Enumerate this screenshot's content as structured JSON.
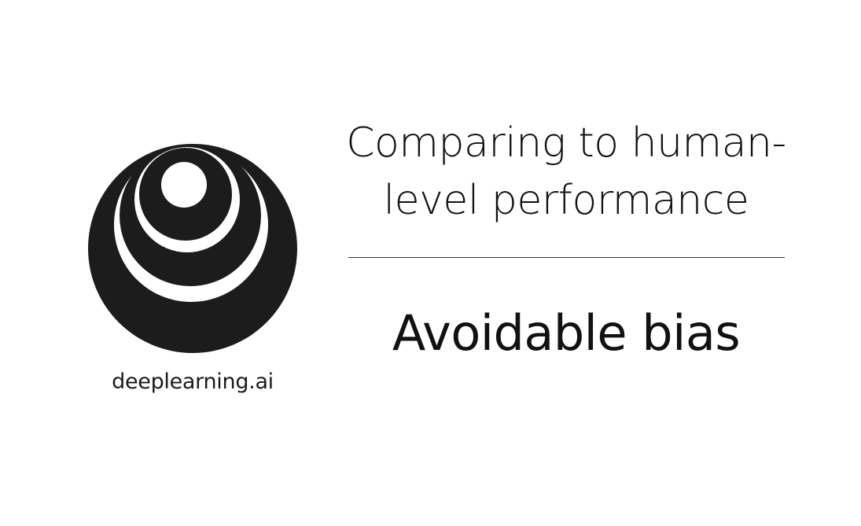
{
  "logo": {
    "icon": "deeplearning-concentric-circles-logo",
    "text": "deeplearning.ai",
    "ink_color": "#1c1c1c"
  },
  "slide": {
    "title_lines": [
      "Comparing to human-",
      "level performance"
    ],
    "subtitle": "Avoidable bias",
    "background": "#ffffff",
    "text_color": "#111111"
  }
}
